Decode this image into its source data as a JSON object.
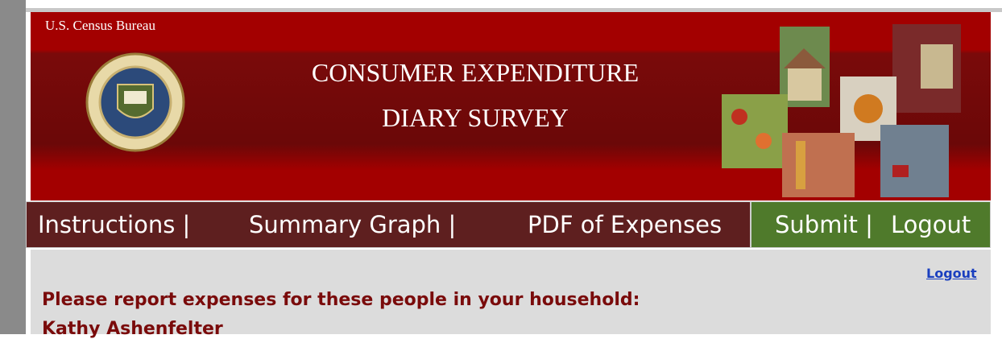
{
  "header": {
    "agency": "U.S. Census Bureau",
    "title_lines": [
      "CONSUMER EXPENDITURE",
      "DIARY SURVEY"
    ]
  },
  "nav": {
    "items": [
      "Instructions |",
      "Summary Graph |",
      "PDF of Expenses"
    ],
    "actions": [
      "Submit |",
      "Logout"
    ]
  },
  "content": {
    "logout_link": "Logout",
    "prompt": "Please report expenses for these people in your household:",
    "people": [
      "Kathy Ashenfelter"
    ]
  }
}
